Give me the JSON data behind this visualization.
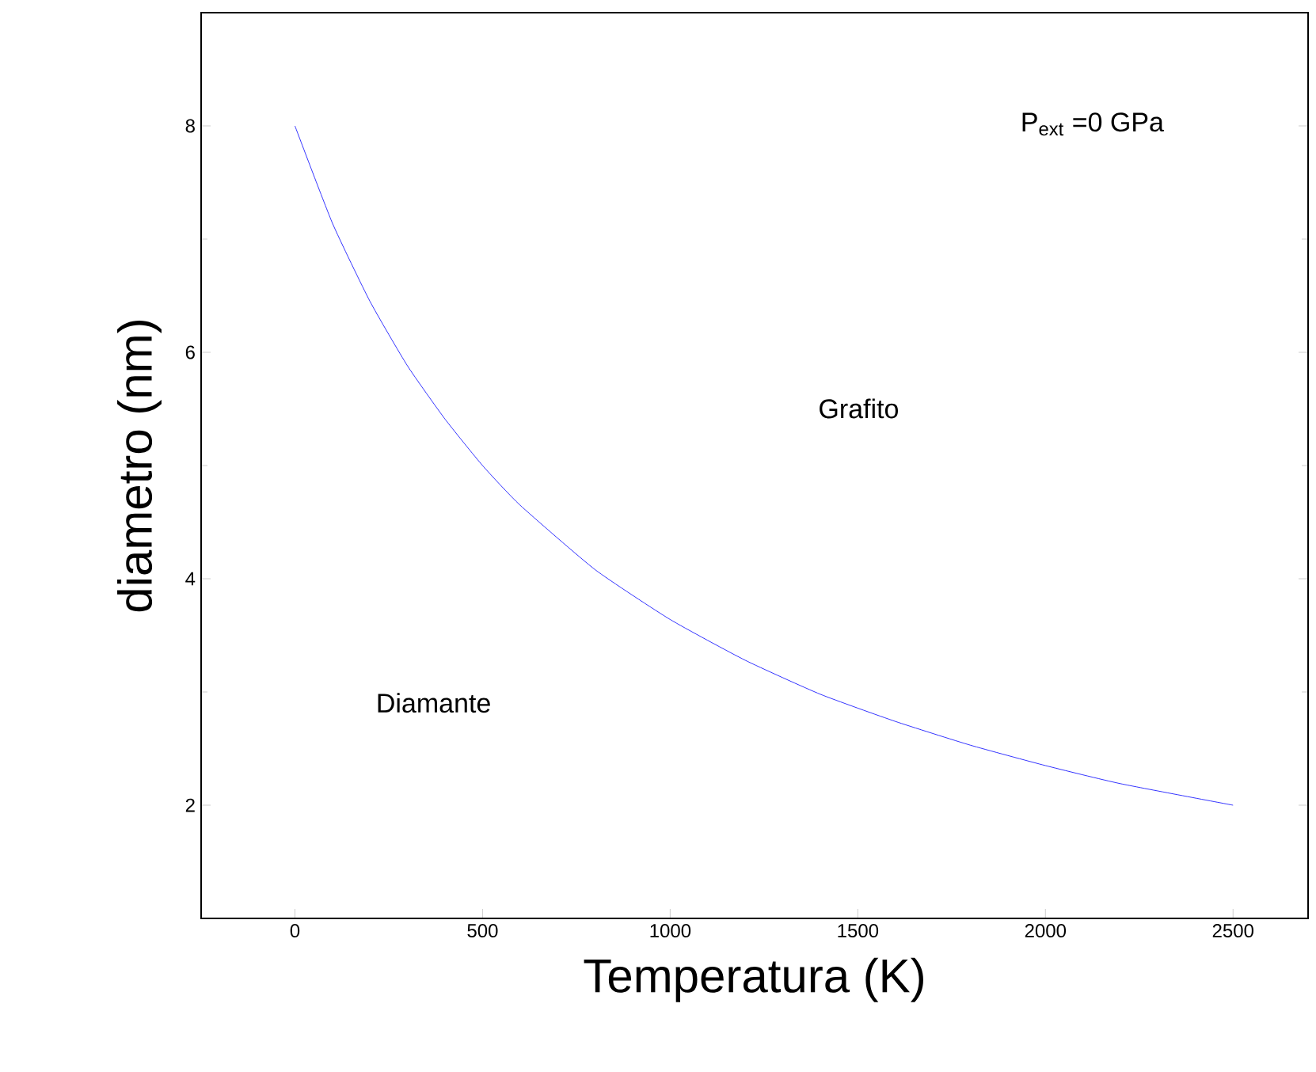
{
  "chart_data": {
    "type": "line",
    "xlabel": "Temperatura (K)",
    "ylabel": "diametro (nm)",
    "x": [
      0,
      100,
      200,
      300,
      400,
      500,
      600,
      800,
      1000,
      1200,
      1400,
      1600,
      1800,
      2000,
      2200,
      2500
    ],
    "series": [
      {
        "color": "#0000ff",
        "values": [
          8.0,
          7.14,
          6.45,
          5.88,
          5.41,
          5.0,
          4.65,
          4.08,
          3.64,
          3.28,
          2.98,
          2.74,
          2.53,
          2.35,
          2.19,
          2.0
        ]
      }
    ],
    "xlim": [
      -250,
      2700
    ],
    "ylim": [
      1,
      9
    ],
    "xticks": [
      0,
      500,
      1000,
      1500,
      2000,
      2500
    ],
    "yticks": [
      2,
      4,
      6,
      8
    ],
    "annotations": [
      "P$_{ext}$ =0 GPa",
      "Grafito",
      "Diamante"
    ],
    "marker": "none",
    "line_style": "solid"
  }
}
